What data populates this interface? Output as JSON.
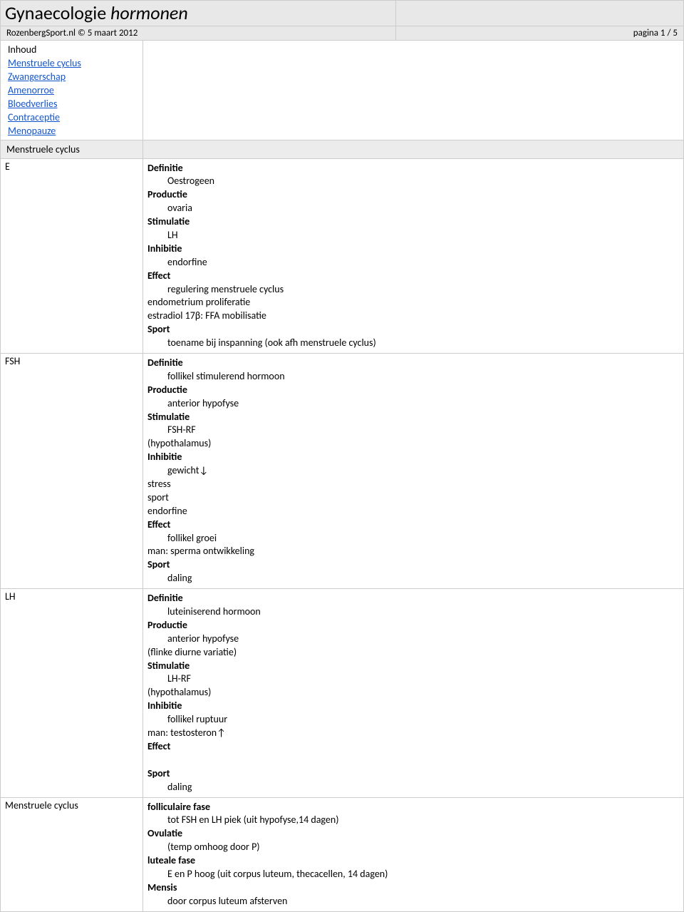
{
  "header": {
    "title_plain": "Gynaecologie ",
    "title_italic": "hormonen",
    "site": "RozenbergSport.nl © 5 maart 2012",
    "page": "pagina 1 / 5"
  },
  "colors": {
    "header_bg": "#e8e8e8",
    "border": "#cccccc",
    "link": "#1155cc",
    "text": "#000000"
  },
  "inhoud": {
    "label": "Inhoud",
    "items": [
      "Menstruele cyclus",
      "Zwangerschap",
      "Amenorroe",
      "Bloedverlies",
      "Contraceptie",
      "Menopauze"
    ]
  },
  "section1": {
    "label": "Menstruele cyclus"
  },
  "rows": {
    "E": {
      "label": "E",
      "lines": [
        {
          "t": "Definitie",
          "b": true,
          "i": 0
        },
        {
          "t": "Oestrogeen",
          "b": false,
          "i": 1
        },
        {
          "t": "Productie",
          "b": true,
          "i": 0
        },
        {
          "t": "ovaria",
          "b": false,
          "i": 1
        },
        {
          "t": "Stimulatie",
          "b": true,
          "i": 0
        },
        {
          "t": "LH",
          "b": false,
          "i": 1
        },
        {
          "t": "Inhibitie",
          "b": true,
          "i": 0
        },
        {
          "t": "endorfine",
          "b": false,
          "i": 1
        },
        {
          "t": "Effect",
          "b": true,
          "i": 0
        },
        {
          "t": "regulering menstruele cyclus",
          "b": false,
          "i": 1
        },
        {
          "t": "endometrium proliferatie",
          "b": false,
          "i": 0
        },
        {
          "t": "estradiol 17β: FFA mobilisatie",
          "b": false,
          "i": 0
        },
        {
          "t": "Sport",
          "b": true,
          "i": 0
        },
        {
          "t": "toename bij inspanning (ook afh menstruele cyclus)",
          "b": false,
          "i": 1
        }
      ]
    },
    "FSH": {
      "label": "FSH",
      "lines": [
        {
          "t": "Definitie",
          "b": true,
          "i": 0
        },
        {
          "t": "follikel stimulerend hormoon",
          "b": false,
          "i": 1
        },
        {
          "t": " Productie",
          "b": true,
          "i": 0
        },
        {
          "t": "anterior hypofyse",
          "b": false,
          "i": 1
        },
        {
          "t": "Stimulatie",
          "b": true,
          "i": 0
        },
        {
          "t": "FSH-RF",
          "b": false,
          "i": 1
        },
        {
          "t": "(hypothalamus)",
          "b": false,
          "i": 0
        },
        {
          "t": "Inhibitie",
          "b": true,
          "i": 0
        },
        {
          "t": "gewicht↓",
          "b": false,
          "i": 1
        },
        {
          "t": "stress",
          "b": false,
          "i": 0
        },
        {
          "t": "sport",
          "b": false,
          "i": 0
        },
        {
          "t": "endorfine",
          "b": false,
          "i": 0
        },
        {
          "t": "Effect",
          "b": true,
          "i": 0
        },
        {
          "t": "follikel groei",
          "b": false,
          "i": 1
        },
        {
          "t": "man: sperma ontwikkeling",
          "b": false,
          "i": 0
        },
        {
          "t": "Sport",
          "b": true,
          "i": 0
        },
        {
          "t": "daling",
          "b": false,
          "i": 1
        }
      ]
    },
    "LH": {
      "label": "LH",
      "lines": [
        {
          "t": "Definitie",
          "b": true,
          "i": 0
        },
        {
          "t": "luteiniserend hormoon",
          "b": false,
          "i": 1
        },
        {
          "t": "Productie",
          "b": true,
          "i": 0
        },
        {
          "t": "anterior hypofyse",
          "b": false,
          "i": 1
        },
        {
          "t": "(flinke diurne variatie)",
          "b": false,
          "i": 0
        },
        {
          "t": "Stimulatie",
          "b": true,
          "i": 0
        },
        {
          "t": "LH-RF",
          "b": false,
          "i": 1
        },
        {
          "t": "(hypothalamus)",
          "b": false,
          "i": 0
        },
        {
          "t": "Inhibitie",
          "b": true,
          "i": 0
        },
        {
          "t": "follikel ruptuur",
          "b": false,
          "i": 1
        },
        {
          "t": "man: testosteron↑",
          "b": false,
          "i": 0
        },
        {
          "t": "Effect",
          "b": true,
          "i": 0
        },
        {
          "t": " ",
          "b": false,
          "i": 1
        },
        {
          "t": "Sport",
          "b": true,
          "i": 0
        },
        {
          "t": "daling",
          "b": false,
          "i": 1
        }
      ]
    },
    "MC": {
      "label": "Menstruele cyclus",
      "lines": [
        {
          "t": "folliculaire fase",
          "b": true,
          "i": 0
        },
        {
          "t": "tot FSH en LH piek (uit hypofyse,14 dagen)",
          "b": false,
          "i": 1
        },
        {
          "t": "Ovulatie",
          "b": true,
          "i": 0
        },
        {
          "t": "(temp omhoog door P)",
          "b": false,
          "i": 1
        },
        {
          "t": "luteale fase",
          "b": true,
          "i": 0
        },
        {
          "t": "E en P hoog (uit corpus luteum, thecacellen, 14 dagen)",
          "b": false,
          "i": 1
        },
        {
          "t": "Mensis",
          "b": true,
          "i": 0
        },
        {
          "t": "door corpus luteum afsterven",
          "b": false,
          "i": 1
        }
      ]
    }
  }
}
